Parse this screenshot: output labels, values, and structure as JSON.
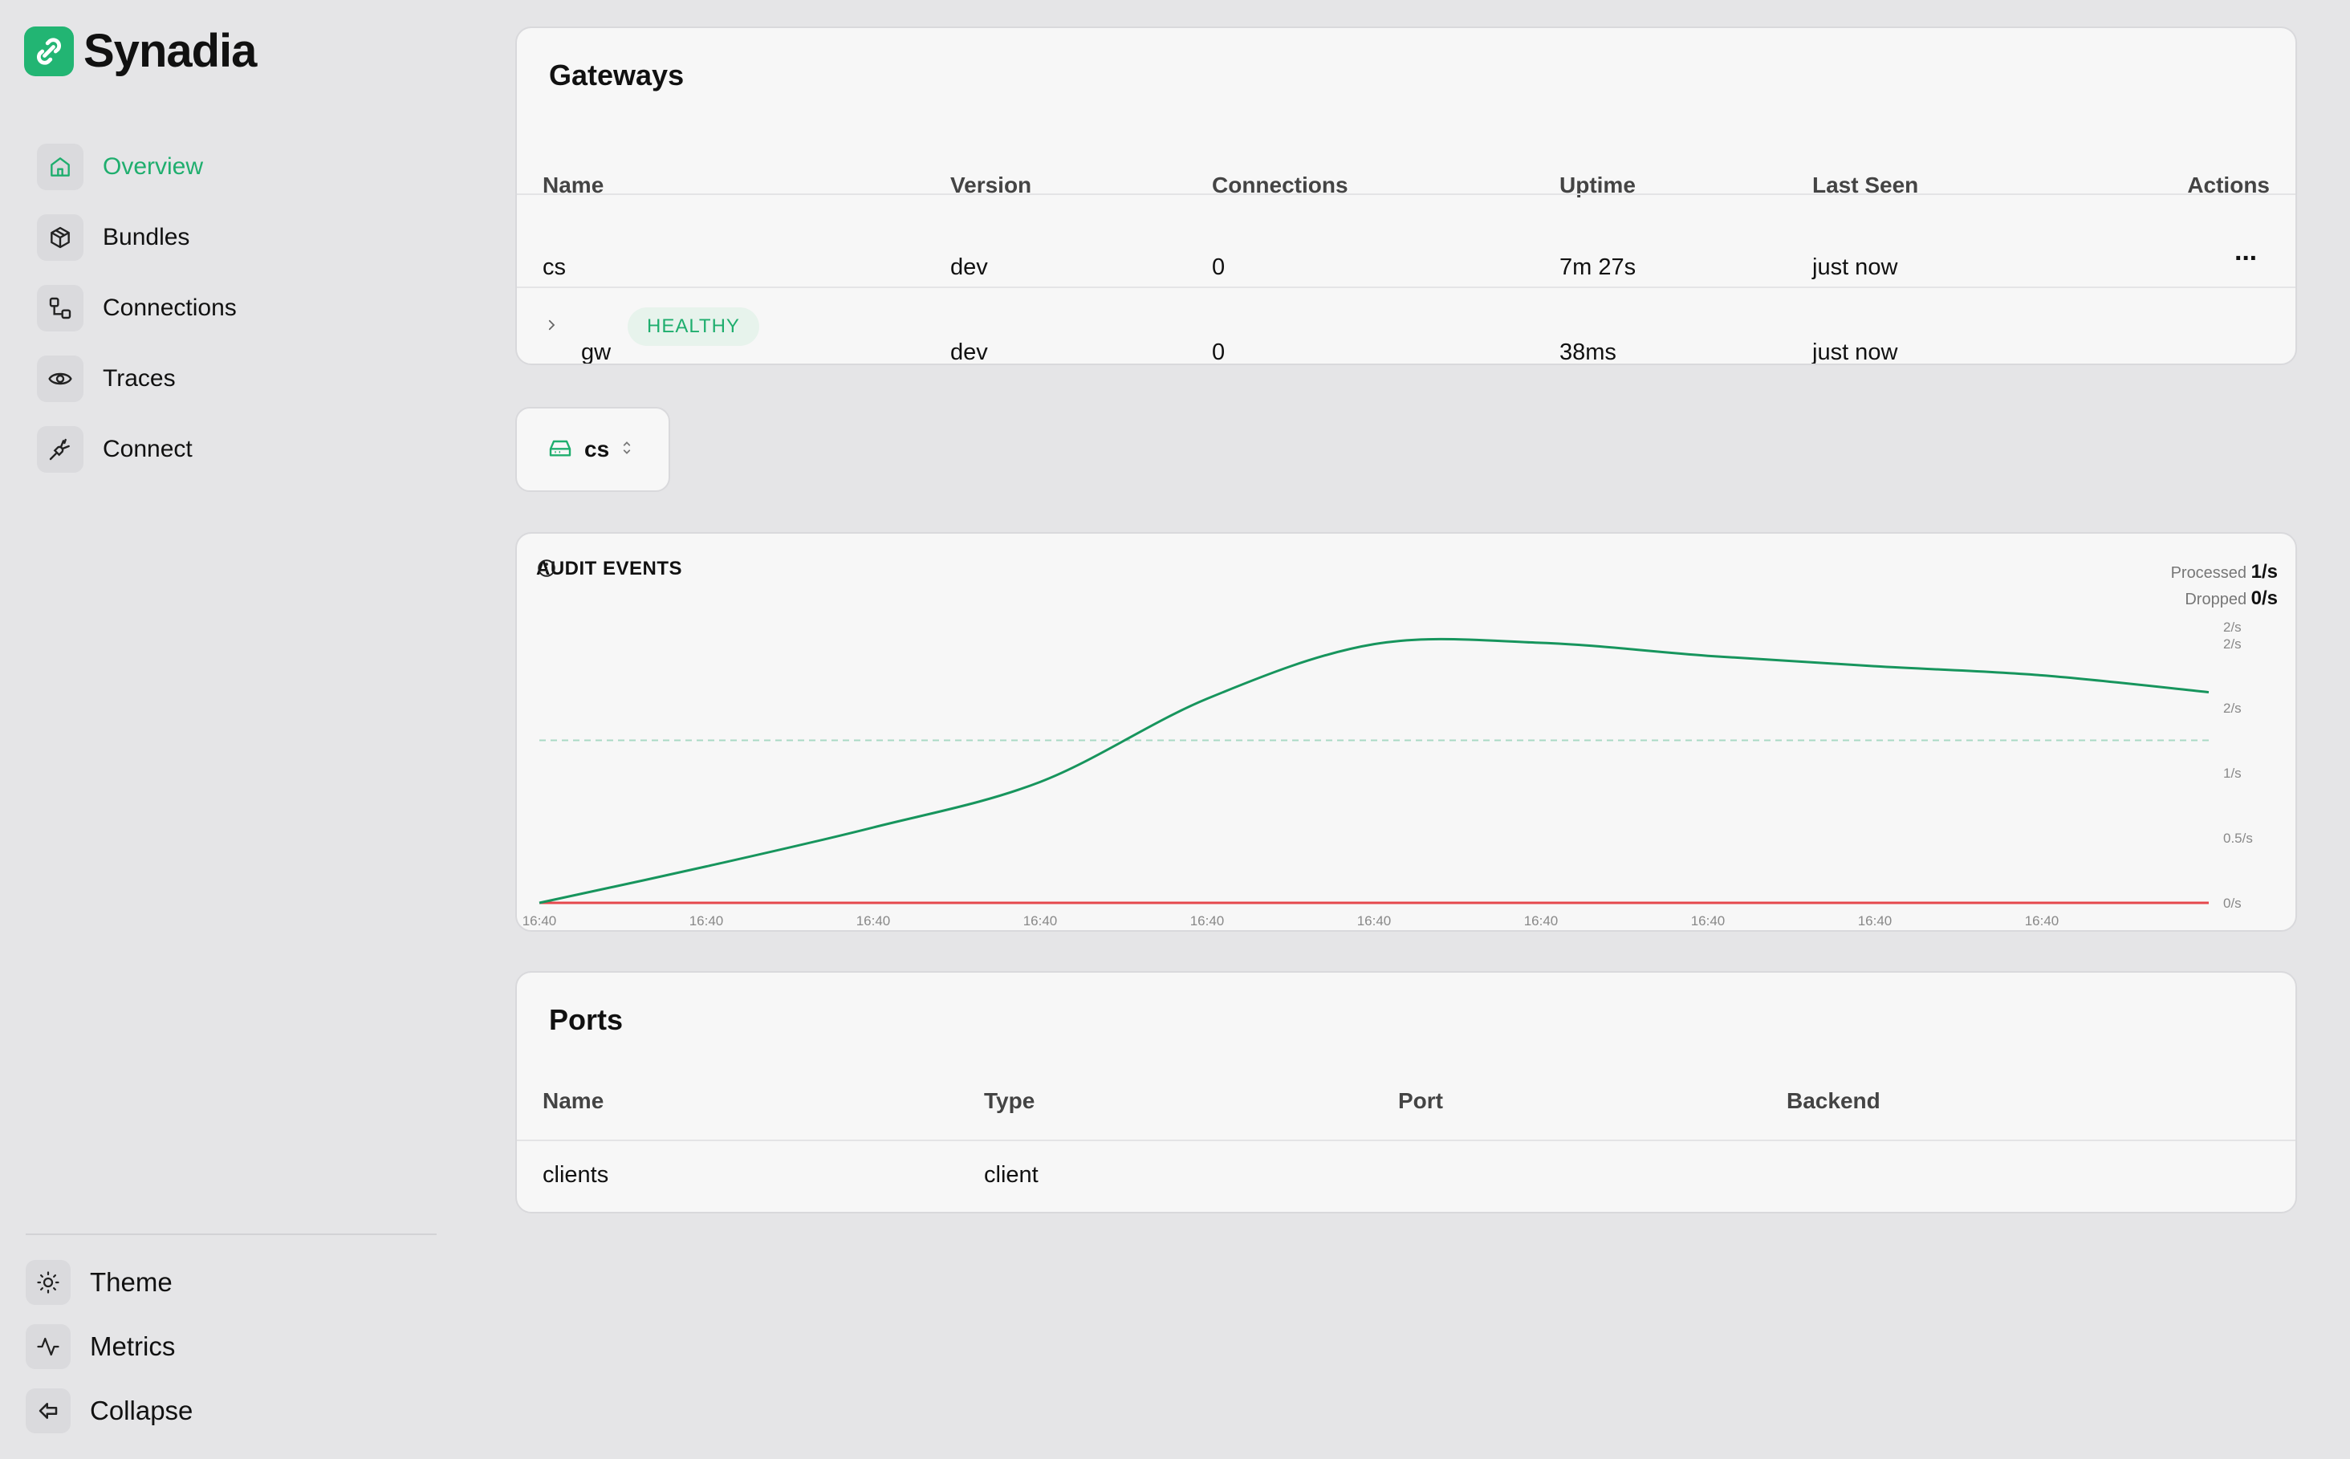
{
  "brand": {
    "name": "Synadia"
  },
  "sidebar": {
    "items": [
      {
        "label": "Overview",
        "icon": "home-icon",
        "active": true
      },
      {
        "label": "Bundles",
        "icon": "package-icon"
      },
      {
        "label": "Connections",
        "icon": "connections-icon"
      },
      {
        "label": "Traces",
        "icon": "eye-icon"
      },
      {
        "label": "Connect",
        "icon": "plug-icon"
      }
    ],
    "bottom": [
      {
        "label": "Theme",
        "icon": "sun-icon"
      },
      {
        "label": "Metrics",
        "icon": "activity-icon"
      },
      {
        "label": "Collapse",
        "icon": "collapse-icon"
      }
    ]
  },
  "gateways": {
    "title": "Gateways",
    "columns": [
      "Name",
      "Version",
      "Connections",
      "Uptime",
      "Last Seen",
      "Actions"
    ],
    "rows": [
      {
        "name": "cs",
        "version": "dev",
        "connections": "0",
        "uptime": "7m 27s",
        "last_seen": "just now",
        "actions": "···"
      },
      {
        "name": "gw",
        "status": "HEALTHY",
        "version": "dev",
        "connections": "0",
        "uptime": "38ms",
        "last_seen": "just now"
      }
    ]
  },
  "selector": {
    "value": "cs"
  },
  "audit": {
    "title": "AUDIT EVENTS",
    "processed_label": "Processed",
    "processed_value": "1/s",
    "dropped_label": "Dropped",
    "dropped_value": "0/s"
  },
  "chart_data": {
    "type": "line",
    "title": "AUDIT EVENTS",
    "x_ticks": [
      "16:40",
      "16:40",
      "16:40",
      "16:40",
      "16:40",
      "16:40",
      "16:40",
      "16:40",
      "16:40",
      "16:40"
    ],
    "y_ticks": [
      "0/s",
      "0.5/s",
      "1/s",
      "2/s",
      "2/s",
      "2/s"
    ],
    "ylim": [
      0,
      2
    ],
    "reference_line": 1.25,
    "x": [
      0,
      1,
      2,
      3,
      4,
      5,
      6,
      7,
      8,
      9,
      10
    ],
    "series": [
      {
        "name": "Processed",
        "color": "#17955d",
        "values": [
          0,
          0.28,
          0.58,
          0.93,
          1.57,
          1.99,
          2.0,
          1.9,
          1.82,
          1.75,
          1.62
        ]
      },
      {
        "name": "Dropped",
        "color": "#e5484d",
        "values": [
          0,
          0,
          0,
          0,
          0,
          0,
          0,
          0,
          0,
          0,
          0
        ]
      }
    ]
  },
  "ports": {
    "title": "Ports",
    "columns": [
      "Name",
      "Type",
      "Port",
      "Backend"
    ],
    "rows": [
      {
        "name": "clients",
        "type": "client",
        "port": "",
        "backend": ""
      }
    ]
  },
  "colors": {
    "accent": "#1fae6e",
    "processed": "#17955d",
    "dropped": "#e5484d"
  }
}
